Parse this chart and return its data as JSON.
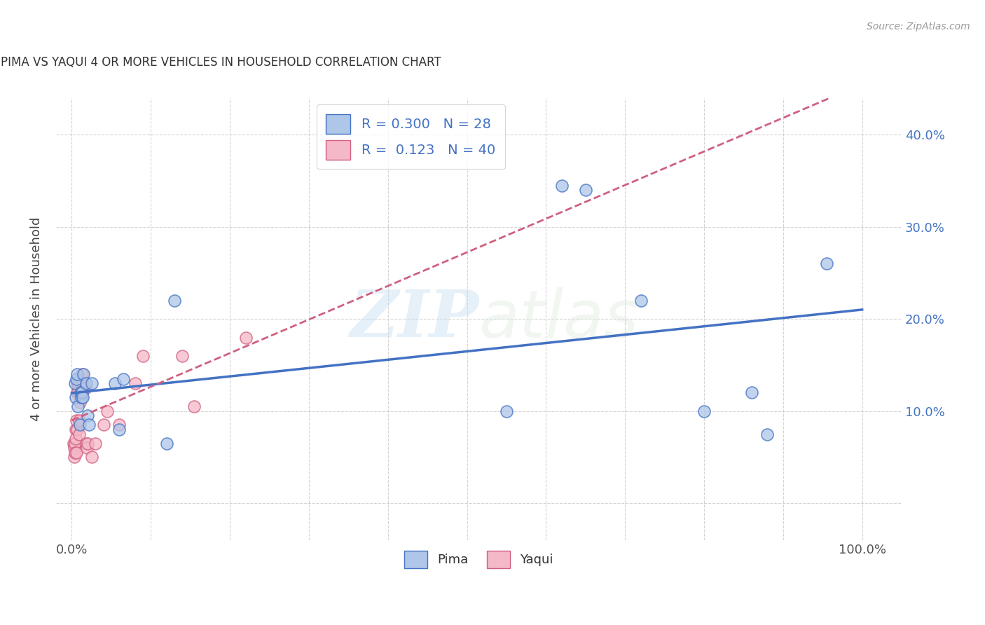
{
  "title": "PIMA VS YAQUI 4 OR MORE VEHICLES IN HOUSEHOLD CORRELATION CHART",
  "source": "Source: ZipAtlas.com",
  "ylabel": "4 or more Vehicles in Household",
  "xlim": [
    -0.02,
    1.05
  ],
  "ylim": [
    -0.04,
    0.44
  ],
  "x_ticks": [
    0.0,
    0.1,
    0.2,
    0.3,
    0.4,
    0.5,
    0.6,
    0.7,
    0.8,
    0.9,
    1.0
  ],
  "x_tick_labels": [
    "0.0%",
    "",
    "",
    "",
    "",
    "",
    "",
    "",
    "",
    "",
    "100.0%"
  ],
  "y_ticks": [
    0.0,
    0.1,
    0.2,
    0.3,
    0.4
  ],
  "y_tick_labels": [
    "",
    "10.0%",
    "20.0%",
    "30.0%",
    "40.0%"
  ],
  "watermark_zip": "ZIP",
  "watermark_atlas": "atlas",
  "legend_pima_R": "0.300",
  "legend_pima_N": "28",
  "legend_yaqui_R": "0.123",
  "legend_yaqui_N": "40",
  "pima_color": "#aec6e8",
  "yaqui_color": "#f5b8c8",
  "pima_line_color": "#4472C4",
  "yaqui_line_color": "#D06080",
  "grid_color": "#d0d0d0",
  "background_color": "#ffffff",
  "pima_x": [
    0.004,
    0.005,
    0.006,
    0.007,
    0.008,
    0.01,
    0.011,
    0.012,
    0.013,
    0.014,
    0.015,
    0.018,
    0.02,
    0.022,
    0.025,
    0.055,
    0.06,
    0.065,
    0.12,
    0.13,
    0.55,
    0.62,
    0.65,
    0.72,
    0.8,
    0.86,
    0.88,
    0.955
  ],
  "pima_y": [
    0.13,
    0.115,
    0.135,
    0.14,
    0.105,
    0.085,
    0.12,
    0.115,
    0.12,
    0.115,
    0.14,
    0.13,
    0.095,
    0.085,
    0.13,
    0.13,
    0.08,
    0.135,
    0.065,
    0.22,
    0.1,
    0.345,
    0.34,
    0.22,
    0.1,
    0.12,
    0.075,
    0.26
  ],
  "yaqui_x": [
    0.002,
    0.003,
    0.003,
    0.004,
    0.004,
    0.005,
    0.005,
    0.006,
    0.006,
    0.007,
    0.007,
    0.007,
    0.008,
    0.008,
    0.009,
    0.009,
    0.01,
    0.01,
    0.011,
    0.012,
    0.012,
    0.013,
    0.013,
    0.014,
    0.015,
    0.016,
    0.017,
    0.018,
    0.019,
    0.02,
    0.025,
    0.03,
    0.04,
    0.045,
    0.06,
    0.08,
    0.09,
    0.14,
    0.155,
    0.22
  ],
  "yaqui_y": [
    0.065,
    0.05,
    0.06,
    0.065,
    0.055,
    0.08,
    0.07,
    0.09,
    0.055,
    0.13,
    0.12,
    0.08,
    0.13,
    0.12,
    0.09,
    0.075,
    0.115,
    0.11,
    0.13,
    0.12,
    0.135,
    0.14,
    0.12,
    0.125,
    0.13,
    0.13,
    0.125,
    0.065,
    0.06,
    0.065,
    0.05,
    0.065,
    0.085,
    0.1,
    0.085,
    0.13,
    0.16,
    0.16,
    0.105,
    0.18
  ],
  "pima_line_x_start": 0.0,
  "pima_line_x_end": 1.0,
  "yaqui_line_x_start": 0.0,
  "yaqui_line_x_end": 1.0
}
